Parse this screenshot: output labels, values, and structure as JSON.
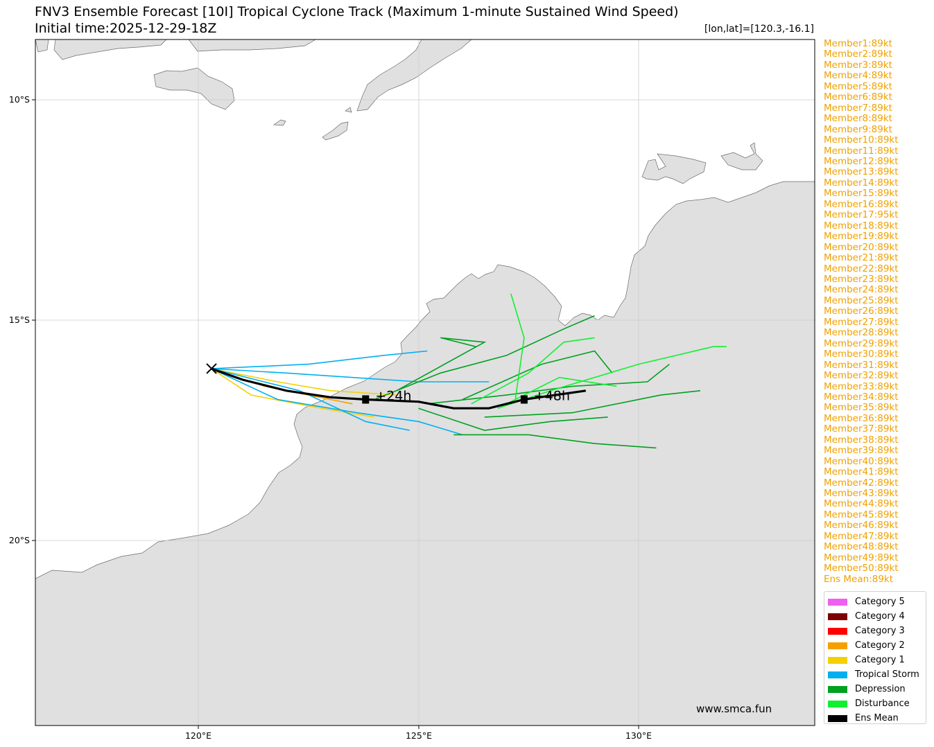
{
  "title": "FNV3 Ensemble Forecast [10I] Tropical Cyclone Track (Maximum 1-minute Sustained Wind Speed)",
  "subtitle": "Initial time:2025-12-29-18Z",
  "coord_readout": "[lon,lat]=[120.3,-16.1]",
  "axes": {
    "lon_ticks": [
      "120°E",
      "125°E",
      "130°E"
    ],
    "lat_ticks": [
      "10°S",
      "15°S",
      "20°S"
    ],
    "lon_range": [
      116.3,
      134.0
    ],
    "lat_range": [
      -8.65,
      -24.25
    ]
  },
  "credit": "www.smca.fun",
  "members": [
    "Member1:89kt",
    "Member2:89kt",
    "Member3:89kt",
    "Member4:89kt",
    "Member5:89kt",
    "Member6:89kt",
    "Member7:89kt",
    "Member8:89kt",
    "Member9:89kt",
    "Member10:89kt",
    "Member11:89kt",
    "Member12:89kt",
    "Member13:89kt",
    "Member14:89kt",
    "Member15:89kt",
    "Member16:89kt",
    "Member17:95kt",
    "Member18:89kt",
    "Member19:89kt",
    "Member20:89kt",
    "Member21:89kt",
    "Member22:89kt",
    "Member23:89kt",
    "Member24:89kt",
    "Member25:89kt",
    "Member26:89kt",
    "Member27:89kt",
    "Member28:89kt",
    "Member29:89kt",
    "Member30:89kt",
    "Member31:89kt",
    "Member32:89kt",
    "Member33:89kt",
    "Member34:89kt",
    "Member35:89kt",
    "Member36:89kt",
    "Member37:89kt",
    "Member38:89kt",
    "Member39:89kt",
    "Member40:89kt",
    "Member41:89kt",
    "Member42:89kt",
    "Member43:89kt",
    "Member44:89kt",
    "Member45:89kt",
    "Member46:89kt",
    "Member47:89kt",
    "Member48:89kt",
    "Member49:89kt",
    "Member50:89kt",
    "Ens Mean:89kt"
  ],
  "legend": [
    {
      "label": "Category 5",
      "color": "#f060f0"
    },
    {
      "label": "Category 4",
      "color": "#800000"
    },
    {
      "label": "Category 3",
      "color": "#ff0000"
    },
    {
      "label": "Category 2",
      "color": "#f5a000"
    },
    {
      "label": "Category 1",
      "color": "#f5d000"
    },
    {
      "label": "Tropical Storm",
      "color": "#00b0f0"
    },
    {
      "label": "Depression",
      "color": "#00a020"
    },
    {
      "label": "Disturbance",
      "color": "#10f030"
    },
    {
      "label": "Ens Mean",
      "color": "#000000"
    }
  ],
  "ens_mean": {
    "start": [
      120.3,
      -16.1
    ],
    "track": [
      [
        120.3,
        -16.1
      ],
      [
        121.0,
        -16.35
      ],
      [
        122.0,
        -16.6
      ],
      [
        123.0,
        -16.75
      ],
      [
        123.8,
        -16.8
      ],
      [
        125.0,
        -16.85
      ],
      [
        125.8,
        -17.0
      ],
      [
        126.6,
        -17.0
      ],
      [
        127.4,
        -16.8
      ],
      [
        128.8,
        -16.6
      ]
    ],
    "markers": [
      {
        "lon": 123.8,
        "lat": -16.8,
        "label": "+24h"
      },
      {
        "lon": 127.4,
        "lat": -16.8,
        "label": "+48h"
      }
    ]
  },
  "member_tracks_sample": [
    {
      "cat": "Category 2",
      "pts": [
        [
          120.3,
          -16.1
        ],
        [
          121.5,
          -16.5
        ],
        [
          122.5,
          -16.7
        ],
        [
          123.5,
          -16.9
        ]
      ]
    },
    {
      "cat": "Category 1",
      "pts": [
        [
          120.3,
          -16.1
        ],
        [
          121.8,
          -16.4
        ],
        [
          123.0,
          -16.6
        ],
        [
          124.5,
          -16.7
        ]
      ]
    },
    {
      "cat": "Category 1",
      "pts": [
        [
          120.3,
          -16.1
        ],
        [
          121.2,
          -16.7
        ],
        [
          122.8,
          -17.0
        ],
        [
          124.0,
          -17.2
        ]
      ]
    },
    {
      "cat": "Tropical Storm",
      "pts": [
        [
          120.3,
          -16.1
        ],
        [
          122.0,
          -16.2
        ],
        [
          123.5,
          -16.3
        ],
        [
          125.0,
          -16.4
        ],
        [
          126.6,
          -16.4
        ]
      ]
    },
    {
      "cat": "Tropical Storm",
      "pts": [
        [
          120.3,
          -16.1
        ],
        [
          121.8,
          -16.8
        ],
        [
          123.6,
          -17.1
        ],
        [
          125.0,
          -17.3
        ],
        [
          126.0,
          -17.6
        ]
      ]
    },
    {
      "cat": "Tropical Storm",
      "pts": [
        [
          120.3,
          -16.1
        ],
        [
          122.5,
          -16.0
        ],
        [
          124.2,
          -15.8
        ],
        [
          125.2,
          -15.7
        ]
      ]
    },
    {
      "cat": "Tropical Storm",
      "pts": [
        [
          120.3,
          -16.1
        ],
        [
          122.3,
          -16.6
        ],
        [
          123.8,
          -17.3
        ],
        [
          124.8,
          -17.5
        ]
      ]
    },
    {
      "cat": "Depression",
      "pts": [
        [
          124.0,
          -16.8
        ],
        [
          125.5,
          -16.2
        ],
        [
          127.0,
          -15.8
        ],
        [
          128.3,
          -15.2
        ],
        [
          129.0,
          -14.9
        ]
      ]
    },
    {
      "cat": "Depression",
      "pts": [
        [
          125.0,
          -17.0
        ],
        [
          126.5,
          -17.5
        ],
        [
          128.0,
          -17.3
        ],
        [
          129.3,
          -17.2
        ]
      ]
    },
    {
      "cat": "Depression",
      "pts": [
        [
          125.2,
          -16.9
        ],
        [
          127.0,
          -16.7
        ],
        [
          128.5,
          -16.5
        ],
        [
          130.2,
          -16.4
        ],
        [
          130.7,
          -16.0
        ]
      ]
    },
    {
      "cat": "Depression",
      "pts": [
        [
          125.8,
          -17.6
        ],
        [
          127.5,
          -17.6
        ],
        [
          129.0,
          -17.8
        ],
        [
          130.4,
          -17.9
        ]
      ]
    },
    {
      "cat": "Depression",
      "pts": [
        [
          124.5,
          -16.6
        ],
        [
          126.5,
          -15.5
        ],
        [
          125.5,
          -15.4
        ],
        [
          126.3,
          -15.6
        ]
      ]
    },
    {
      "cat": "Depression",
      "pts": [
        [
          126.0,
          -16.8
        ],
        [
          127.8,
          -16.0
        ],
        [
          129.0,
          -15.7
        ],
        [
          129.4,
          -16.2
        ]
      ]
    },
    {
      "cat": "Depression",
      "pts": [
        [
          126.5,
          -17.2
        ],
        [
          128.5,
          -17.1
        ],
        [
          130.5,
          -16.7
        ],
        [
          131.4,
          -16.6
        ]
      ]
    },
    {
      "cat": "Disturbance",
      "pts": [
        [
          126.2,
          -16.9
        ],
        [
          127.5,
          -16.2
        ],
        [
          128.3,
          -15.5
        ],
        [
          129.0,
          -15.4
        ]
      ]
    },
    {
      "cat": "Disturbance",
      "pts": [
        [
          126.8,
          -17.0
        ],
        [
          128.0,
          -16.6
        ],
        [
          130.0,
          -16.0
        ],
        [
          131.7,
          -15.6
        ],
        [
          132.0,
          -15.6
        ]
      ]
    },
    {
      "cat": "Disturbance",
      "pts": [
        [
          127.2,
          -16.8
        ],
        [
          127.4,
          -15.4
        ],
        [
          127.1,
          -14.4
        ]
      ]
    },
    {
      "cat": "Disturbance",
      "pts": [
        [
          127.0,
          -16.9
        ],
        [
          128.2,
          -16.3
        ],
        [
          129.5,
          -16.5
        ]
      ]
    }
  ]
}
